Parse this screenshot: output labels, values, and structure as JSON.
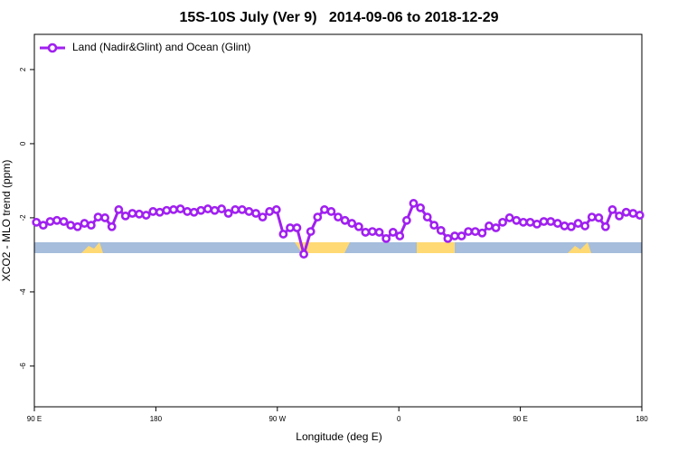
{
  "chart_data": {
    "type": "line",
    "title": "15S-10S July (Ver 9)   2014-09-06 to 2018-12-29",
    "x_label": "Longitude (deg E)",
    "y_label": "XCO2 - MLO trend (ppm)",
    "x": [
      91.5,
      96.6,
      101.7,
      106.7,
      111.8,
      116.9,
      122.0,
      127.1,
      132.1,
      137.2,
      142.3,
      147.4,
      152.5,
      157.5,
      162.6,
      167.7,
      172.8,
      177.9,
      182.9,
      188.0,
      193.1,
      198.2,
      203.3,
      208.3,
      213.4,
      218.5,
      223.6,
      228.7,
      233.7,
      238.8,
      243.9,
      249.0,
      254.1,
      259.1,
      264.2,
      269.3,
      274.4,
      279.5,
      284.5,
      289.6,
      294.7,
      299.8,
      304.9,
      309.9,
      315.0,
      320.1,
      325.2,
      330.3,
      335.3,
      340.4,
      345.5,
      350.6,
      355.7,
      360.7,
      365.8,
      370.9,
      376.0,
      381.1,
      386.1,
      391.2,
      396.3,
      401.4,
      406.5,
      411.5,
      416.6,
      421.7,
      426.8,
      431.9,
      436.9,
      442.0,
      447.1,
      452.2,
      457.3,
      462.3,
      467.4,
      472.5,
      477.6,
      482.7,
      487.7,
      492.8,
      497.9,
      503.0,
      508.1,
      513.1,
      518.2,
      523.3,
      528.4,
      533.5,
      538.5
    ],
    "series": [
      {
        "name": "Land (Nadir&Glint) and Ocean (Glint)",
        "color": "#a020f0",
        "values": [
          -2.12,
          -2.2,
          -2.1,
          -2.07,
          -2.1,
          -2.2,
          -2.24,
          -2.15,
          -2.2,
          -1.98,
          -2.0,
          -2.24,
          -1.78,
          -1.95,
          -1.88,
          -1.9,
          -1.93,
          -1.83,
          -1.85,
          -1.8,
          -1.78,
          -1.76,
          -1.83,
          -1.85,
          -1.8,
          -1.76,
          -1.8,
          -1.76,
          -1.88,
          -1.78,
          -1.78,
          -1.83,
          -1.88,
          -1.98,
          -1.83,
          -1.78,
          -2.44,
          -2.27,
          -2.27,
          -2.98,
          -2.37,
          -1.98,
          -1.78,
          -1.83,
          -1.98,
          -2.07,
          -2.15,
          -2.24,
          -2.39,
          -2.37,
          -2.39,
          -2.56,
          -2.39,
          -2.49,
          -2.07,
          -1.61,
          -1.73,
          -1.98,
          -2.2,
          -2.34,
          -2.56,
          -2.49,
          -2.49,
          -2.37,
          -2.37,
          -2.41,
          -2.22,
          -2.27,
          -2.12,
          -2.0,
          -2.07,
          -2.12,
          -2.12,
          -2.17,
          -2.1,
          -2.1,
          -2.15,
          -2.22,
          -2.24,
          -2.15,
          -2.22,
          -1.98,
          -2.0,
          -2.24,
          -1.78,
          -1.95,
          -1.85,
          -1.88,
          -1.93
        ]
      }
    ],
    "xlim": [
      90,
      540
    ],
    "xticks": [
      {
        "value": 90,
        "label": "90 E"
      },
      180,
      {
        "value": 270,
        "label": "90 W"
      },
      {
        "value": 360,
        "label": "0"
      },
      {
        "value": 450,
        "label": "90 E"
      },
      {
        "value": 540,
        "label": "180"
      }
    ],
    "ylim": [
      -7.1,
      2.95
    ],
    "yticks": [
      2,
      0,
      -2,
      -4,
      -6
    ],
    "legend": "top-left"
  }
}
